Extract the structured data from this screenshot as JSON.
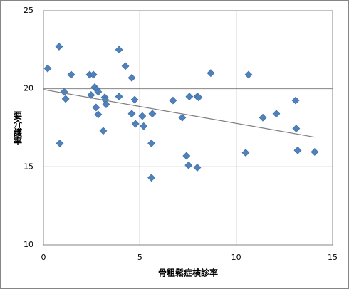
{
  "chart_data": {
    "type": "scatter",
    "x_label": "骨粗鬆症検診率",
    "y_label": "要介護率",
    "xlim": [
      0,
      15
    ],
    "xticks": [
      0,
      5,
      10,
      15
    ],
    "ylim": [
      10,
      25
    ],
    "yticks": [
      10,
      15,
      20,
      25
    ],
    "grid": true,
    "color": "#4f81bd",
    "series": [
      {
        "color": "#4f81bd",
        "x": [
          0.22,
          0.81,
          0.85,
          1.07,
          1.15,
          1.44,
          2.4,
          2.59,
          2.47,
          2.66,
          2.77,
          2.73,
          2.84,
          2.84,
          3.1,
          3.18,
          3.2,
          3.25,
          3.92,
          3.92,
          4.25,
          4.58,
          4.58,
          4.73,
          4.77,
          5.13,
          5.2,
          5.6,
          5.65,
          5.6,
          6.72,
          7.2,
          7.42,
          7.53,
          7.57,
          7.98,
          8.05,
          7.98,
          8.68,
          10.49,
          10.64,
          11.38,
          12.08,
          13.08,
          13.11,
          13.19,
          14.07
        ],
        "values": [
          21.3,
          22.7,
          16.5,
          19.8,
          19.35,
          20.9,
          20.9,
          20.9,
          19.6,
          20.1,
          19.95,
          18.8,
          19.8,
          18.35,
          17.3,
          19.45,
          19.3,
          19.0,
          22.5,
          19.5,
          21.45,
          20.7,
          18.4,
          19.3,
          17.75,
          18.25,
          17.6,
          16.5,
          18.4,
          14.3,
          19.25,
          18.15,
          15.7,
          15.1,
          19.5,
          19.5,
          19.45,
          14.95,
          21.0,
          15.9,
          20.9,
          18.15,
          18.4,
          19.25,
          17.45,
          16.05,
          15.95
        ]
      }
    ],
    "trendline": {
      "color": "#7f7f7f",
      "x": [
        0,
        14.07
      ],
      "values": [
        19.95,
        16.9
      ]
    }
  }
}
